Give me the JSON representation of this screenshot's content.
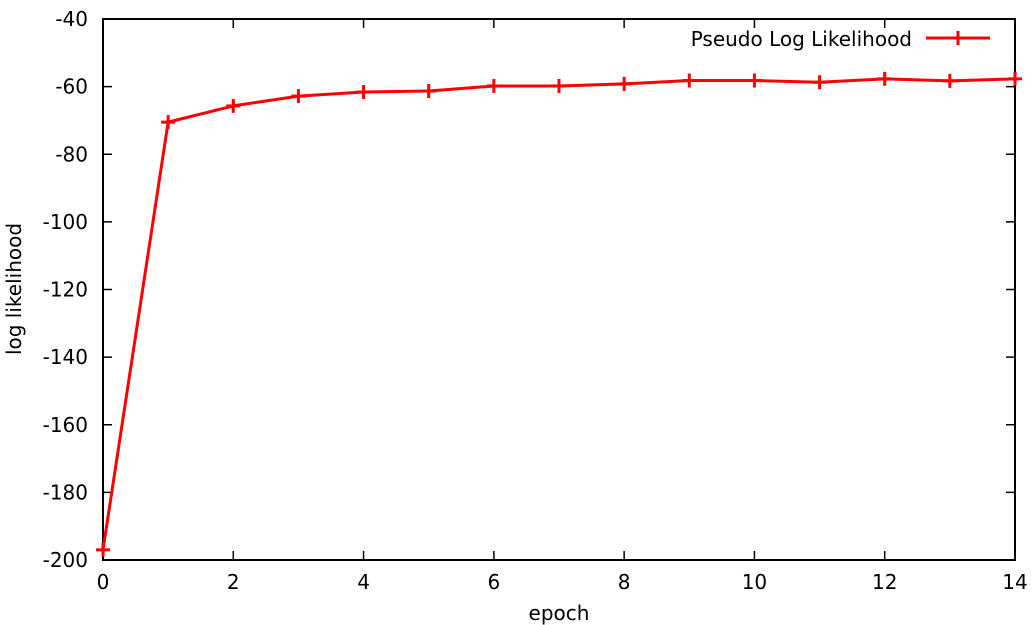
{
  "chart_data": {
    "type": "line",
    "title": "",
    "xlabel": "epoch",
    "ylabel": "log likelihood",
    "xlim": [
      0,
      14
    ],
    "ylim": [
      -200,
      -40
    ],
    "x_ticks": [
      0,
      2,
      4,
      6,
      8,
      10,
      12,
      14
    ],
    "y_ticks": [
      -40,
      -60,
      -80,
      -100,
      -120,
      -140,
      -160,
      -180,
      -200
    ],
    "grid": false,
    "legend_position": "top-right",
    "x": [
      0,
      1,
      2,
      3,
      4,
      5,
      6,
      7,
      8,
      9,
      10,
      11,
      12,
      13,
      14
    ],
    "series": [
      {
        "name": "Pseudo Log Likelihood",
        "color": "#ff0000",
        "marker": "plus",
        "values": [
          -197,
          -70.5,
          -65.7,
          -62.8,
          -61.6,
          -61.3,
          -59.8,
          -59.8,
          -59.2,
          -58.2,
          -58.2,
          -58.7,
          -57.7,
          -58.3,
          -57.7
        ]
      }
    ]
  }
}
